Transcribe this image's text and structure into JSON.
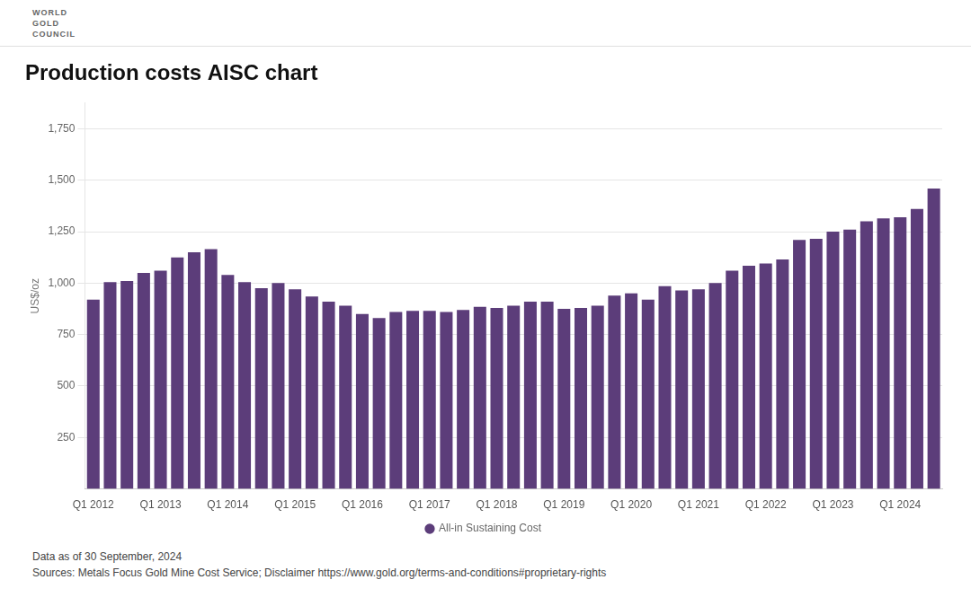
{
  "chart_data": {
    "type": "bar",
    "title": "Production costs AISC chart",
    "ylabel": "US$/oz",
    "annotations": [
      "WORLD",
      "GOLD",
      "COUNCIL",
      "Data as of 30 September, 2024",
      "Sources: Metals Focus Gold Mine Cost Service; Disclaimer https://www.gold.org/terms-and-conditions#proprietary-rights"
    ],
    "categories": [
      "Q1 2012",
      null,
      null,
      null,
      "Q1 2013",
      null,
      null,
      null,
      "Q1 2014",
      null,
      null,
      null,
      "Q1 2015",
      null,
      null,
      null,
      "Q1 2016",
      null,
      null,
      null,
      "Q1 2017",
      null,
      null,
      null,
      "Q1 2018",
      null,
      null,
      null,
      "Q1 2019",
      null,
      null,
      null,
      "Q1 2020",
      null,
      null,
      null,
      "Q1 2021",
      null,
      null,
      null,
      "Q1 2022",
      null,
      null,
      null,
      "Q1 2023",
      null,
      null,
      null,
      "Q1 2024",
      null,
      null
    ],
    "series": [
      {
        "name": "All-in Sustaining Cost",
        "color": "#5c3d7a",
        "values": [
          920,
          1005,
          1010,
          1050,
          1060,
          1125,
          1150,
          1165,
          1040,
          1005,
          975,
          1000,
          970,
          935,
          910,
          890,
          850,
          830,
          860,
          865,
          865,
          860,
          870,
          885,
          880,
          890,
          910,
          910,
          875,
          880,
          890,
          940,
          950,
          920,
          985,
          965,
          970,
          1000,
          1060,
          1085,
          1095,
          1115,
          1210,
          1215,
          1250,
          1260,
          1300,
          1315,
          1320,
          1360,
          1460
        ]
      }
    ],
    "ylim": [
      0,
      1875
    ],
    "yticks": [
      250,
      500,
      750,
      {
        "value": 1000,
        "label": "1,000"
      },
      {
        "value": 1250,
        "label": "1,250"
      },
      {
        "value": 1500,
        "label": "1,500"
      },
      {
        "value": 1750,
        "label": "1,750"
      }
    ],
    "grid": true,
    "legend": "bottom"
  }
}
